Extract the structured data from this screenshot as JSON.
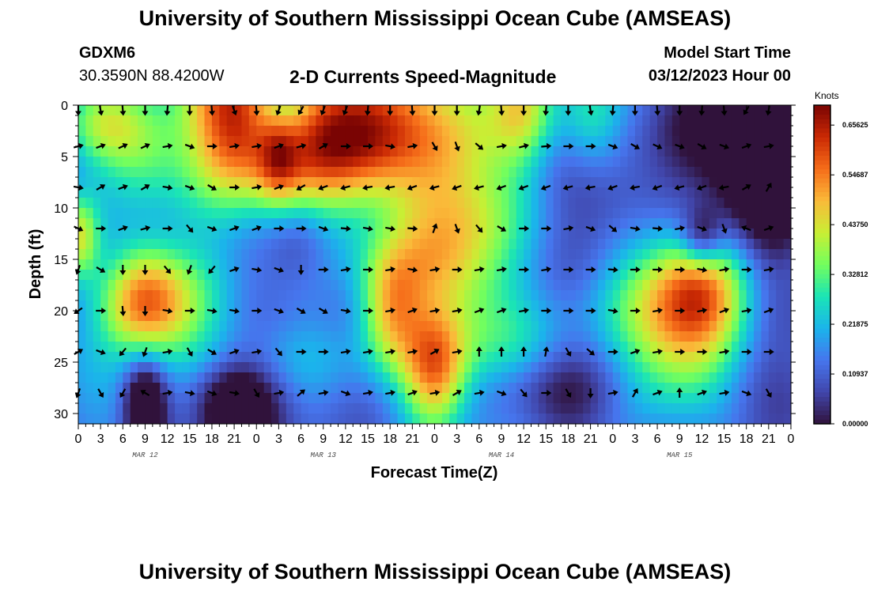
{
  "page": {
    "title": "University of Southern Mississippi Ocean Cube (AMSEAS)",
    "footer_title": "University of Southern Mississippi Ocean Cube (AMSEAS)",
    "station_id": "GDXM6",
    "coords": "30.3590N  88.4200W",
    "chart_title": "2-D Currents Speed-Magnitude",
    "model_label": "Model Start Time",
    "model_time": "03/12/2023 Hour 00"
  },
  "chart_data": {
    "type": "heatmap",
    "title": "2-D Currents Speed-Magnitude",
    "xlabel": "Forecast Time(Z)",
    "ylabel": "Depth (ft)",
    "colorbar_label": "Knots",
    "colorbar_ticks": [
      "0.00000",
      "0.10937",
      "0.21875",
      "0.32812",
      "0.43750",
      "0.54687",
      "0.65625"
    ],
    "color_range": [
      0,
      0.7
    ],
    "x_range_hours": [
      0,
      96
    ],
    "x_tick_labels": [
      "0",
      "3",
      "6",
      "9",
      "12",
      "15",
      "18",
      "21",
      "0",
      "3",
      "6",
      "9",
      "12",
      "15",
      "18",
      "21",
      "0",
      "3",
      "6",
      "9",
      "12",
      "15",
      "18",
      "21",
      "0",
      "3",
      "6",
      "9",
      "12",
      "15",
      "18",
      "21",
      "0"
    ],
    "day_labels": [
      "MAR 12",
      "MAR 13",
      "MAR 14",
      "MAR 15"
    ],
    "y_ticks": [
      0,
      5,
      10,
      15,
      20,
      25,
      30
    ],
    "ylim": [
      0,
      31
    ],
    "arrow_depths_ft": [
      0.5,
      4,
      8,
      12,
      16,
      20,
      24,
      28
    ],
    "arrow_times_hours": [
      0,
      3,
      6,
      9,
      12,
      15,
      18,
      21,
      24,
      27,
      30,
      33,
      36,
      39,
      42,
      45,
      48,
      51,
      54,
      57,
      60,
      63,
      66,
      69,
      72,
      75,
      78,
      81,
      84,
      87,
      90,
      93
    ],
    "arrow_directions_deg": [
      [
        180,
        170,
        175,
        180,
        185,
        180,
        175,
        160,
        175,
        200,
        210,
        200,
        200,
        185,
        180,
        175,
        180,
        180,
        190,
        175,
        180,
        185,
        180,
        170,
        185,
        180,
        175,
        180,
        185,
        175,
        210,
        190
      ],
      [
        75,
        70,
        65,
        65,
        80,
        110,
        90,
        80,
        80,
        70,
        75,
        60,
        90,
        90,
        100,
        80,
        150,
        160,
        130,
        80,
        75,
        85,
        90,
        90,
        110,
        120,
        115,
        110,
        120,
        110,
        70,
        80
      ],
      [
        100,
        60,
        70,
        60,
        100,
        110,
        120,
        90,
        80,
        70,
        240,
        250,
        255,
        260,
        260,
        250,
        255,
        250,
        255,
        250,
        250,
        250,
        255,
        260,
        250,
        260,
        250,
        255,
        250,
        260,
        60,
        30
      ],
      [
        115,
        90,
        70,
        75,
        90,
        140,
        110,
        70,
        70,
        90,
        90,
        110,
        95,
        100,
        100,
        95,
        20,
        160,
        140,
        120,
        90,
        90,
        80,
        110,
        130,
        100,
        95,
        80,
        110,
        160,
        290,
        70
      ],
      [
        200,
        120,
        180,
        180,
        140,
        200,
        220,
        70,
        100,
        110,
        180,
        90,
        80,
        90,
        80,
        100,
        80,
        90,
        80,
        80,
        90,
        80,
        90,
        90,
        95,
        90,
        90,
        90,
        100,
        80,
        90,
        80
      ],
      [
        235,
        90,
        175,
        180,
        100,
        90,
        100,
        100,
        90,
        110,
        120,
        120,
        100,
        90,
        80,
        70,
        80,
        80,
        70,
        70,
        80,
        90,
        90,
        90,
        100,
        90,
        80,
        90,
        80,
        70,
        80,
        70
      ],
      [
        60,
        110,
        220,
        200,
        80,
        150,
        120,
        70,
        80,
        140,
        90,
        90,
        80,
        80,
        80,
        80,
        60,
        80,
        0,
        0,
        0,
        10,
        150,
        130,
        90,
        70,
        80,
        90,
        90,
        80,
        90,
        90
      ],
      [
        200,
        150,
        210,
        300,
        80,
        100,
        110,
        100,
        150,
        80,
        50,
        80,
        110,
        80,
        80,
        70,
        80,
        60,
        80,
        110,
        140,
        90,
        150,
        180,
        80,
        30,
        70,
        0,
        70,
        80,
        110,
        150
      ]
    ]
  }
}
